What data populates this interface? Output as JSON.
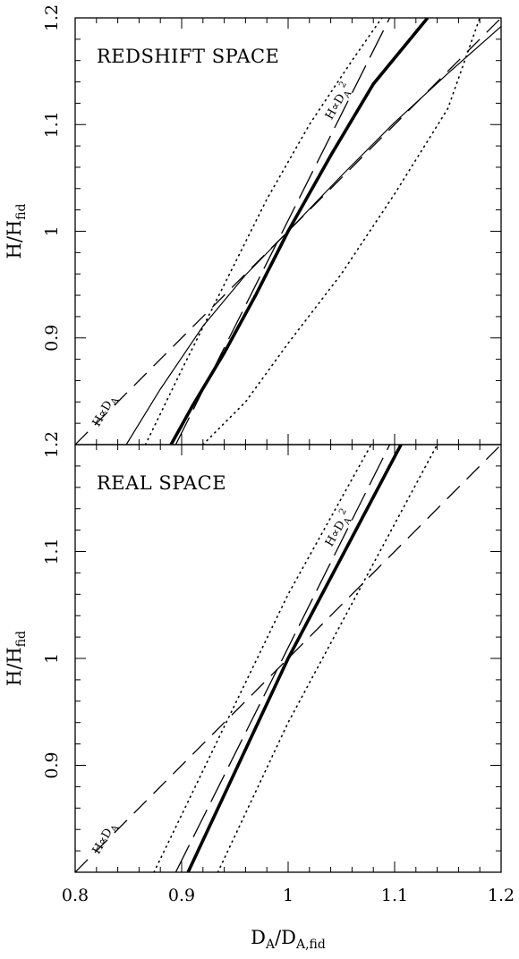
{
  "chart_data": [
    {
      "type": "line",
      "title": "REDSHIFT SPACE",
      "xlim": [
        0.8,
        1.2
      ],
      "ylim": [
        0.8,
        1.2
      ],
      "xticks": [
        0.8,
        0.9,
        1,
        1.1,
        1.2
      ],
      "yticks": [
        0.9,
        1,
        1.1,
        1.2
      ],
      "ytick_labels": [
        "0.9",
        "1",
        "1.1",
        "1.2"
      ],
      "ylabel": "H/H",
      "ylabel_sub": "fid",
      "series": [
        {
          "style": "dashed",
          "x": [
            0.8,
            1.2
          ],
          "y": [
            0.8,
            1.2
          ]
        },
        {
          "style": "long-dashed",
          "x": [
            0.8944,
            1.0954
          ],
          "y": [
            0.8,
            1.2
          ]
        },
        {
          "style": "thick-solid",
          "x": [
            0.89,
            0.91,
            0.94,
            0.97,
            1.0,
            1.04,
            1.08,
            1.131
          ],
          "y": [
            0.8,
            0.836,
            0.886,
            0.941,
            1.0,
            1.071,
            1.138,
            1.2
          ]
        },
        {
          "style": "thin-solid",
          "x": [
            0.848,
            0.88,
            0.92,
            0.96,
            1.0,
            1.05,
            1.1,
            1.15,
            1.2
          ],
          "y": [
            0.8,
            0.852,
            0.911,
            0.959,
            1.0,
            1.052,
            1.102,
            1.148,
            1.192
          ]
        },
        {
          "style": "dotted",
          "x": [
            0.866,
            0.9,
            0.94,
            0.98,
            1.02,
            1.06,
            1.088
          ],
          "y": [
            0.8,
            0.87,
            0.95,
            1.03,
            1.1,
            1.16,
            1.2
          ]
        },
        {
          "style": "dotted",
          "x": [
            0.92,
            0.96,
            1.0,
            1.05,
            1.1,
            1.15,
            1.18
          ],
          "y": [
            0.8,
            0.84,
            0.895,
            0.96,
            1.035,
            1.115,
            1.2
          ]
        }
      ],
      "annotations": [
        {
          "text": "H∝D",
          "sub": "A",
          "near_x": 0.83,
          "near_y": 0.83
        },
        {
          "text": "H∝D",
          "sub": "A",
          "sup": "2",
          "near_x": 1.05,
          "near_y": 1.12
        }
      ]
    },
    {
      "type": "line",
      "title": "REAL SPACE",
      "xlim": [
        0.8,
        1.2
      ],
      "ylim": [
        0.8,
        1.2
      ],
      "xticks": [
        0.8,
        0.9,
        1,
        1.1,
        1.2
      ],
      "xtick_labels": [
        "0.8",
        "0.9",
        "1",
        "1.1",
        "1.2"
      ],
      "yticks": [
        0.9,
        1,
        1.1,
        1.2
      ],
      "ytick_labels": [
        "0.9",
        "1",
        "1.1",
        "1.2"
      ],
      "xlabel": "D",
      "xlabel_sub": "A",
      "xlabel_mid": "/D",
      "xlabel_sub2": "A,fid",
      "ylabel": "H/H",
      "ylabel_sub": "fid",
      "series": [
        {
          "style": "dashed",
          "x": [
            0.8,
            1.2
          ],
          "y": [
            0.8,
            1.2
          ]
        },
        {
          "style": "long-dashed",
          "x": [
            0.8944,
            1.0954
          ],
          "y": [
            0.8,
            1.2
          ]
        },
        {
          "style": "thick-solid",
          "x": [
            0.906,
            1.0,
            1.106
          ],
          "y": [
            0.8,
            1.0,
            1.2
          ]
        },
        {
          "style": "dotted",
          "x": [
            0.874,
            1.0,
            1.078
          ],
          "y": [
            0.8,
            1.06,
            1.2
          ]
        },
        {
          "style": "dotted",
          "x": [
            0.934,
            1.0,
            1.14
          ],
          "y": [
            0.8,
            0.94,
            1.2
          ]
        }
      ],
      "annotations": [
        {
          "text": "H∝D",
          "sub": "A",
          "near_x": 0.83,
          "near_y": 0.83
        },
        {
          "text": "H∝D",
          "sub": "A",
          "sup": "2",
          "near_x": 1.05,
          "near_y": 1.12
        }
      ]
    }
  ]
}
